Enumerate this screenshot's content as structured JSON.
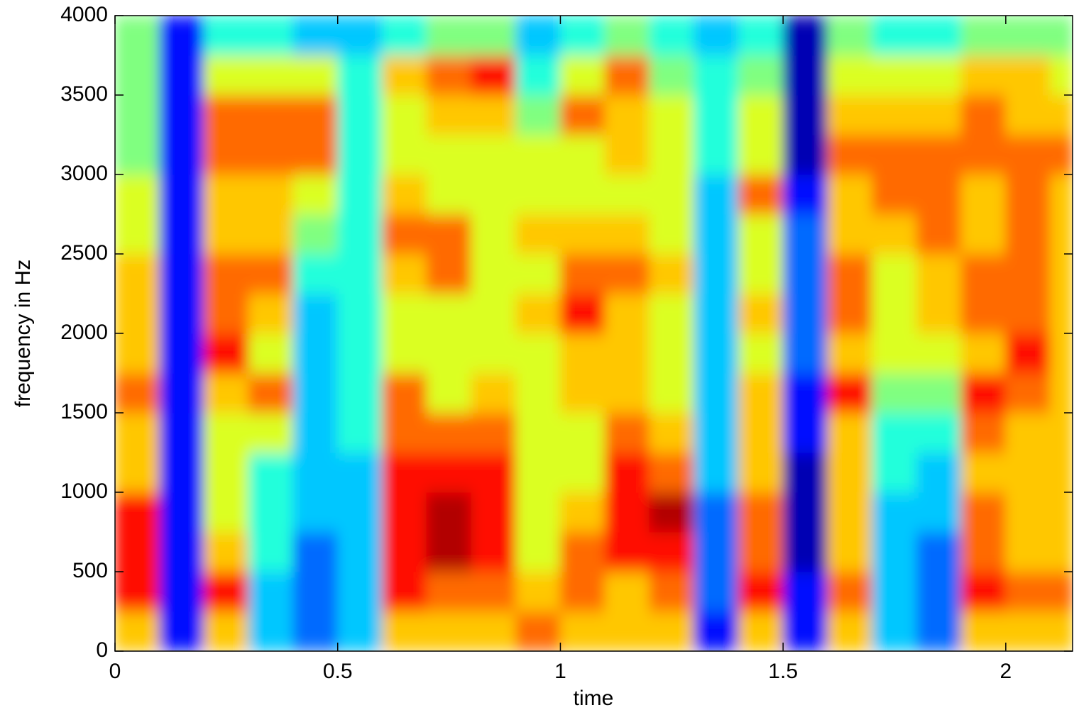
{
  "chart_data": {
    "type": "heatmap",
    "x_label": "time",
    "y_label": "frequency in Hz",
    "xlim": [
      0,
      2.15
    ],
    "ylim": [
      0,
      4000
    ],
    "xticks": [
      0,
      0.5,
      1,
      1.5,
      2
    ],
    "yticks": [
      0,
      500,
      1000,
      1500,
      2000,
      2500,
      3000,
      3500,
      4000
    ],
    "colormap": "jet",
    "zlim": [
      0,
      10
    ],
    "xbins": [
      0,
      0.1,
      0.2,
      0.3,
      0.4,
      0.5,
      0.6,
      0.7,
      0.8,
      0.9,
      1,
      1.1,
      1.2,
      1.3,
      1.4,
      1.5,
      1.6,
      1.7,
      1.8,
      1.9,
      2,
      2.1,
      2.15
    ],
    "ybins": [
      0,
      250,
      500,
      750,
      1000,
      1250,
      1500,
      1750,
      2000,
      2250,
      2500,
      2750,
      3000,
      3250,
      3500,
      3750,
      4000
    ],
    "z": [
      [
        7,
        9,
        9,
        9,
        7,
        7,
        8,
        7,
        7,
        7,
        6,
        6,
        5,
        5,
        5,
        5
      ],
      [
        1,
        1,
        1,
        1,
        1,
        1,
        1,
        1,
        1,
        1,
        1,
        1,
        1,
        1,
        1,
        1
      ],
      [
        7,
        9,
        7,
        6,
        6,
        6,
        7,
        9,
        8,
        8,
        7,
        7,
        8,
        8,
        6,
        4
      ],
      [
        3,
        3,
        4,
        4,
        4,
        6,
        8,
        6,
        7,
        8,
        7,
        7,
        8,
        8,
        6,
        4
      ],
      [
        2,
        2,
        2,
        3,
        3,
        3,
        3,
        3,
        3,
        4,
        5,
        6,
        8,
        8,
        6,
        3
      ],
      [
        3,
        3,
        3,
        3,
        3,
        4,
        4,
        4,
        4,
        4,
        4,
        4,
        4,
        4,
        4,
        3
      ],
      [
        7,
        9,
        9,
        9,
        9,
        8,
        8,
        6,
        6,
        7,
        8,
        7,
        6,
        6,
        7,
        4
      ],
      [
        7,
        8,
        10,
        10,
        9,
        8,
        6,
        6,
        6,
        8,
        8,
        6,
        6,
        7,
        8,
        5
      ],
      [
        7,
        8,
        9,
        9,
        9,
        8,
        7,
        6,
        6,
        6,
        6,
        6,
        6,
        7,
        9,
        5
      ],
      [
        8,
        7,
        6,
        6,
        6,
        6,
        6,
        6,
        7,
        6,
        7,
        6,
        6,
        5,
        4,
        3
      ],
      [
        7,
        8,
        8,
        7,
        6,
        6,
        7,
        7,
        9,
        8,
        7,
        6,
        6,
        8,
        6,
        4
      ],
      [
        7,
        7,
        9,
        9,
        9,
        8,
        7,
        7,
        7,
        8,
        7,
        6,
        7,
        7,
        8,
        5
      ],
      [
        7,
        8,
        9,
        10,
        8,
        7,
        6,
        6,
        6,
        7,
        6,
        6,
        6,
        6,
        5,
        4
      ],
      [
        1,
        2,
        2,
        2,
        3,
        3,
        3,
        3,
        3,
        3,
        3,
        3,
        4,
        4,
        4,
        3
      ],
      [
        7,
        9,
        8,
        8,
        7,
        7,
        7,
        6,
        7,
        6,
        6,
        8,
        6,
        6,
        5,
        4
      ],
      [
        1,
        1,
        0,
        0,
        0,
        1,
        1,
        2,
        2,
        2,
        2,
        1,
        0,
        0,
        0,
        0
      ],
      [
        7,
        8,
        7,
        7,
        7,
        7,
        9,
        7,
        8,
        8,
        7,
        7,
        8,
        7,
        6,
        5
      ],
      [
        3,
        3,
        3,
        3,
        4,
        4,
        5,
        6,
        6,
        6,
        7,
        8,
        8,
        7,
        6,
        4
      ],
      [
        2,
        2,
        2,
        3,
        3,
        4,
        5,
        6,
        7,
        7,
        8,
        8,
        8,
        7,
        6,
        4
      ],
      [
        7,
        9,
        8,
        8,
        7,
        8,
        9,
        7,
        8,
        8,
        7,
        7,
        8,
        8,
        7,
        5
      ],
      [
        7,
        8,
        7,
        7,
        7,
        7,
        8,
        9,
        8,
        8,
        8,
        8,
        8,
        7,
        7,
        5
      ],
      [
        7,
        8,
        7,
        7,
        7,
        7,
        7,
        7,
        7,
        7,
        7,
        7,
        8,
        7,
        6,
        5
      ]
    ]
  }
}
